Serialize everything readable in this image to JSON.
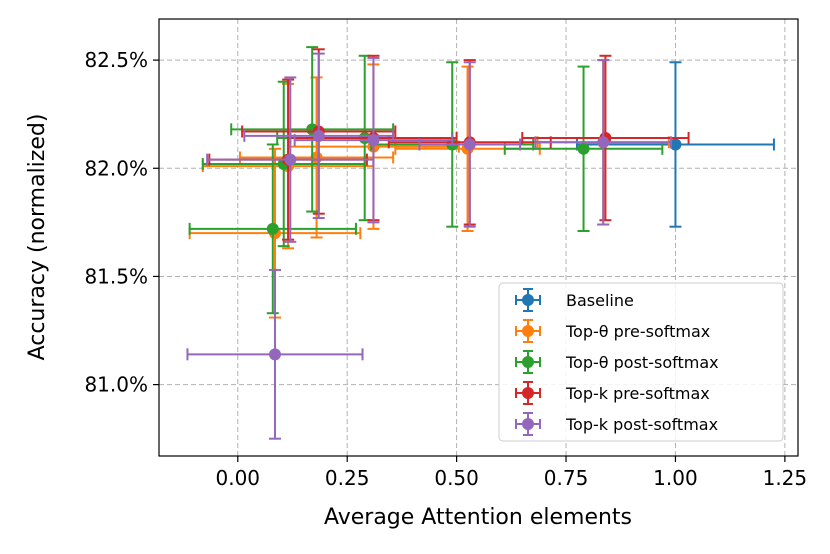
{
  "chart_data": {
    "type": "scatter",
    "title": "",
    "xlabel": "Average Attention elements",
    "ylabel": "Accuracy (normalized)",
    "xlim": [
      -0.18,
      1.28
    ],
    "ylim": [
      80.67,
      82.69
    ],
    "xticks": [
      0.0,
      0.25,
      0.5,
      0.75,
      1.0,
      1.25
    ],
    "xtick_labels": [
      "0.00",
      "0.25",
      "0.50",
      "0.75",
      "1.00",
      "1.25"
    ],
    "yticks": [
      81.0,
      81.5,
      82.0,
      82.5
    ],
    "ytick_labels": [
      "81.0%",
      "81.5%",
      "82.0%",
      "82.5%"
    ],
    "grid": true,
    "legend_position": "lower-right",
    "series": [
      {
        "name": "Baseline",
        "color": "#1f77b4",
        "points": [
          {
            "x": 1.0,
            "y": 82.11,
            "xerr": 0.225,
            "yerr": 0.38
          }
        ]
      },
      {
        "name": "Top-θ pre-softmax",
        "color": "#ff7f0e",
        "points": [
          {
            "x": 0.085,
            "y": 81.7,
            "xerr": 0.195,
            "yerr": 0.39
          },
          {
            "x": 0.115,
            "y": 82.01,
            "xerr": 0.195,
            "yerr": 0.38
          },
          {
            "x": 0.18,
            "y": 82.05,
            "xerr": 0.175,
            "yerr": 0.37
          },
          {
            "x": 0.31,
            "y": 82.1,
            "xerr": 0.195,
            "yerr": 0.38
          },
          {
            "x": 0.525,
            "y": 82.09,
            "xerr": 0.165,
            "yerr": 0.38
          },
          {
            "x": 0.835,
            "y": 82.12,
            "xerr": 0.15,
            "yerr": 0.38
          }
        ]
      },
      {
        "name": "Top-θ post-softmax",
        "color": "#2ca02c",
        "points": [
          {
            "x": 0.08,
            "y": 81.72,
            "xerr": 0.19,
            "yerr": 0.39
          },
          {
            "x": 0.105,
            "y": 82.02,
            "xerr": 0.185,
            "yerr": 0.38
          },
          {
            "x": 0.17,
            "y": 82.18,
            "xerr": 0.185,
            "yerr": 0.38
          },
          {
            "x": 0.29,
            "y": 82.14,
            "xerr": 0.2,
            "yerr": 0.38
          },
          {
            "x": 0.49,
            "y": 82.11,
            "xerr": 0.185,
            "yerr": 0.38
          },
          {
            "x": 0.79,
            "y": 82.09,
            "xerr": 0.18,
            "yerr": 0.38
          }
        ]
      },
      {
        "name": "Top-k pre-softmax",
        "color": "#d62728",
        "points": [
          {
            "x": 0.115,
            "y": 82.04,
            "xerr": 0.18,
            "yerr": 0.37
          },
          {
            "x": 0.185,
            "y": 82.17,
            "xerr": 0.175,
            "yerr": 0.38
          },
          {
            "x": 0.31,
            "y": 82.14,
            "xerr": 0.19,
            "yerr": 0.38
          },
          {
            "x": 0.53,
            "y": 82.12,
            "xerr": 0.185,
            "yerr": 0.38
          },
          {
            "x": 0.84,
            "y": 82.14,
            "xerr": 0.19,
            "yerr": 0.38
          }
        ]
      },
      {
        "name": "Top-k post-softmax",
        "color": "#9467bd",
        "points": [
          {
            "x": 0.085,
            "y": 81.14,
            "xerr": 0.2,
            "yerr": 0.39
          },
          {
            "x": 0.12,
            "y": 82.04,
            "xerr": 0.19,
            "yerr": 0.38
          },
          {
            "x": 0.185,
            "y": 82.15,
            "xerr": 0.17,
            "yerr": 0.38
          },
          {
            "x": 0.31,
            "y": 82.13,
            "xerr": 0.18,
            "yerr": 0.38
          },
          {
            "x": 0.53,
            "y": 82.11,
            "xerr": 0.115,
            "yerr": 0.38
          },
          {
            "x": 0.835,
            "y": 82.12,
            "xerr": 0.155,
            "yerr": 0.38
          }
        ]
      }
    ]
  }
}
